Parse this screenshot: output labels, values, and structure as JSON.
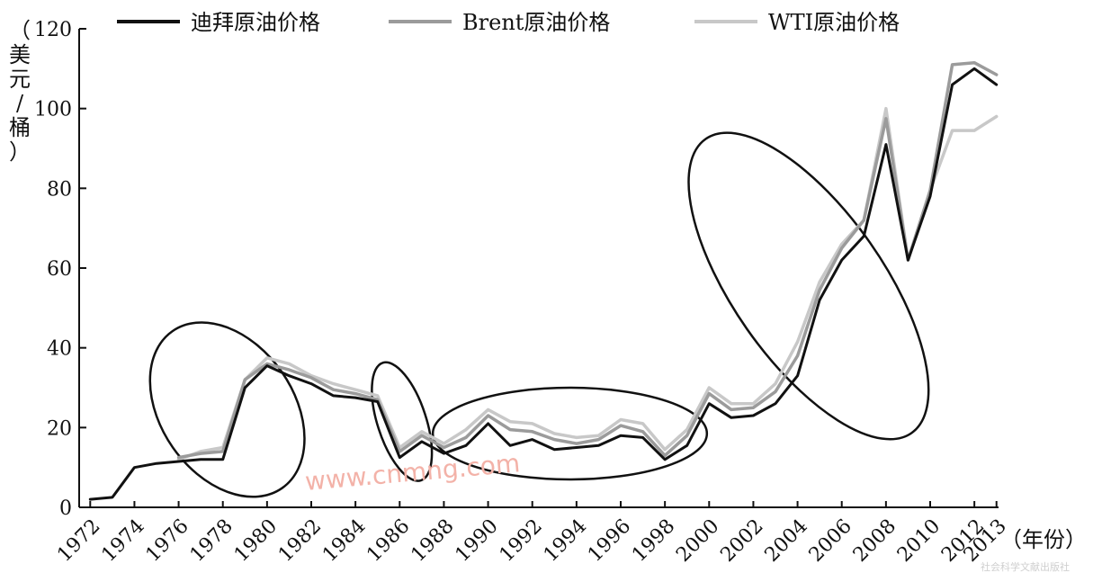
{
  "chart_data": {
    "type": "line",
    "ylabel": "（美元/桶）",
    "xlabel": "（年份）",
    "ylim": [
      0,
      120
    ],
    "yticks": [
      0,
      20,
      40,
      60,
      80,
      100,
      120
    ],
    "xlim": [
      1971.5,
      2013.5
    ],
    "xticks": [
      1972,
      1974,
      1976,
      1978,
      1980,
      1982,
      1984,
      1986,
      1988,
      1990,
      1992,
      1994,
      1996,
      1998,
      2000,
      2002,
      2004,
      2006,
      2008,
      2010,
      2012,
      2013
    ],
    "legend_position": "top",
    "series": [
      {
        "name": "迪拜原油价格",
        "color": "#111111",
        "x": [
          1972,
          1973,
          1974,
          1975,
          1976,
          1977,
          1978,
          1979,
          1980,
          1981,
          1982,
          1983,
          1984,
          1985,
          1986,
          1987,
          1988,
          1989,
          1990,
          1991,
          1992,
          1993,
          1994,
          1995,
          1996,
          1997,
          1998,
          1999,
          2000,
          2001,
          2002,
          2003,
          2004,
          2005,
          2006,
          2007,
          2008,
          2009,
          2010,
          2011,
          2012,
          2013
        ],
        "y": [
          2,
          2.5,
          10,
          11,
          11.5,
          12,
          12,
          30,
          35.5,
          33,
          31,
          28,
          27.5,
          26.5,
          12.5,
          16.5,
          13.5,
          15.5,
          21,
          15.5,
          17,
          14.5,
          15,
          15.5,
          18,
          17.5,
          12,
          15.5,
          26,
          22.5,
          23,
          26,
          33,
          52,
          62,
          68,
          91,
          62,
          78,
          106,
          110,
          106
        ]
      },
      {
        "name": "Brent原油价格",
        "color": "#9b9b9b",
        "x": [
          1976,
          1977,
          1978,
          1979,
          1980,
          1981,
          1982,
          1983,
          1984,
          1985,
          1986,
          1987,
          1988,
          1989,
          1990,
          1991,
          1992,
          1993,
          1994,
          1995,
          1996,
          1997,
          1998,
          1999,
          2000,
          2001,
          2002,
          2003,
          2004,
          2005,
          2006,
          2007,
          2008,
          2009,
          2010,
          2011,
          2012,
          2013
        ],
        "y": [
          12.5,
          13.5,
          14,
          32,
          36,
          34.5,
          32.5,
          29.5,
          28.5,
          27,
          14,
          18,
          15,
          17.5,
          23,
          19.5,
          19,
          17,
          16,
          17,
          20.5,
          19,
          13,
          18,
          28.5,
          24.5,
          25,
          29,
          38,
          54.5,
          65,
          72,
          97.5,
          62,
          79.5,
          111,
          111.5,
          108.5
        ]
      },
      {
        "name": "WTI原油价格",
        "color": "#c8c8c8",
        "x": [
          1976,
          1977,
          1978,
          1979,
          1980,
          1981,
          1982,
          1983,
          1984,
          1985,
          1986,
          1987,
          1988,
          1989,
          1990,
          1991,
          1992,
          1993,
          1994,
          1995,
          1996,
          1997,
          1998,
          1999,
          2000,
          2001,
          2002,
          2003,
          2004,
          2005,
          2006,
          2007,
          2008,
          2009,
          2010,
          2011,
          2012,
          2013
        ],
        "y": [
          12,
          14,
          15,
          32,
          37.5,
          36,
          33,
          31,
          29.5,
          28,
          15,
          19,
          16,
          19.5,
          24.5,
          21.5,
          21,
          18.5,
          17.5,
          18,
          22,
          21,
          14.5,
          19.5,
          30,
          26,
          26,
          31,
          41.5,
          56.5,
          66,
          72,
          100,
          62,
          79.5,
          94.5,
          94.5,
          98
        ]
      }
    ],
    "annotations": [
      {
        "type": "ellipse",
        "cx": 1978.2,
        "cy": 24.5,
        "rx_years": 3.0,
        "ry_value": 24,
        "rotation": -35
      },
      {
        "type": "ellipse",
        "cx": 1986.1,
        "cy": 21.5,
        "rx_years": 1.1,
        "ry_value": 15.5,
        "rotation": -18
      },
      {
        "type": "ellipse",
        "cx": 1993.7,
        "cy": 18.5,
        "rx_years": 6.2,
        "ry_value": 11.5,
        "rotation": 0
      },
      {
        "type": "ellipse",
        "cx": 2004.5,
        "cy": 55.5,
        "rx_years": 3.4,
        "ry_value": 45,
        "rotation": -35
      }
    ]
  },
  "watermark": "www.cnmng.com",
  "corner_text": "社会科学文献出版社"
}
